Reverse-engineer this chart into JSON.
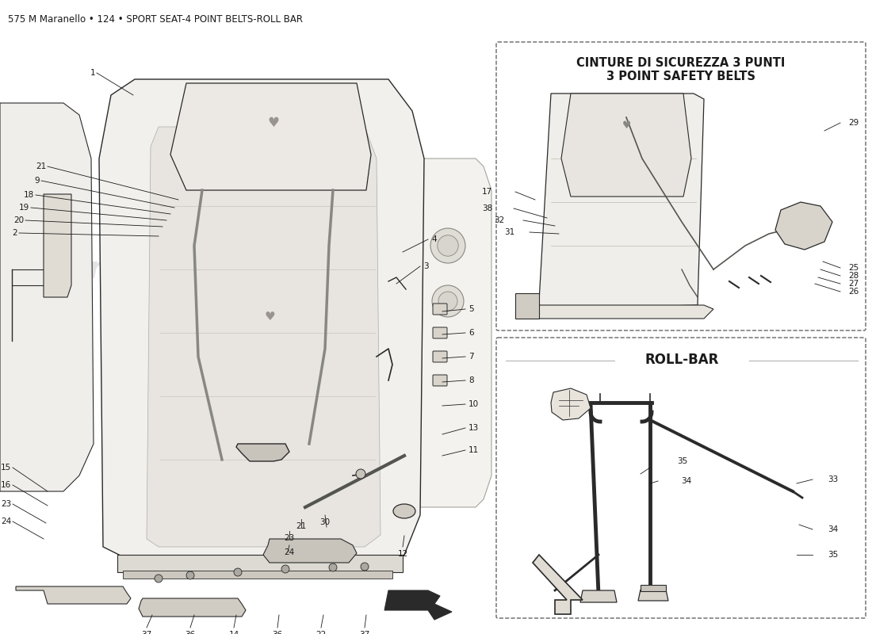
{
  "title": "575 M Maranello • 124 • SPORT SEAT-4 POINT BELTS-ROLL BAR",
  "bg_color": "#ffffff",
  "text_color": "#1a1a1a",
  "title_fontsize": 8.5,
  "watermark_text": "eurospares",
  "watermark_color": "#d8d8d8",
  "section1_title_line1": "CINTURE DI SICUREZZA 3 PUNTI",
  "section1_title_line2": "3 POINT SAFETY BELTS",
  "section2_title": "ROLL-BAR",
  "line_color": "#1a1a1a",
  "box_edge_color": "#555555",
  "draw_color": "#2a2a2a"
}
